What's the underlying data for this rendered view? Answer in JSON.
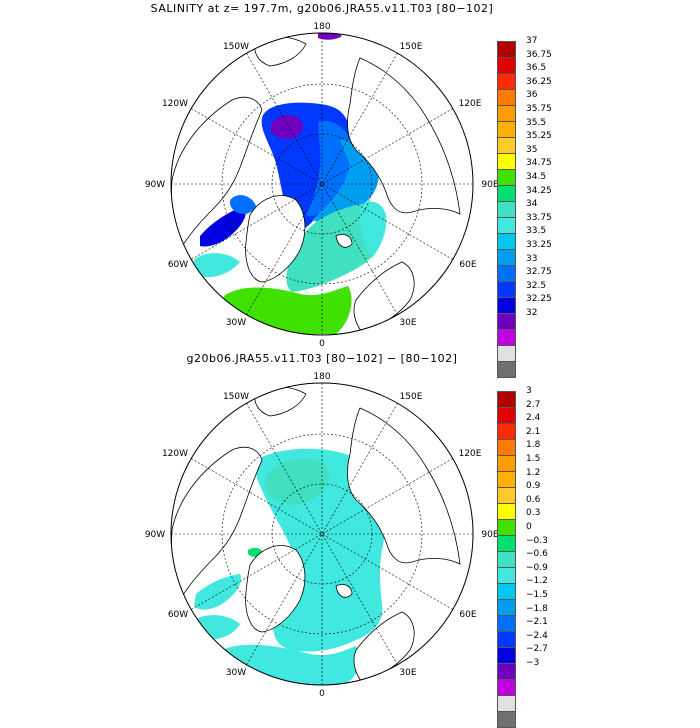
{
  "top": {
    "title": "SALINITY at z= 197.7m, g20b06.JRA55.v11.T03 [80−102]",
    "colorbar_labels": [
      "37",
      "36.75",
      "36.5",
      "36.25",
      "36",
      "35.75",
      "35.5",
      "35.25",
      "35",
      "34.75",
      "34.5",
      "34.25",
      "34",
      "33.75",
      "33.5",
      "33.25",
      "33",
      "32.75",
      "32.5",
      "32.25",
      "32"
    ],
    "colorbar_colors": [
      "#b30000",
      "#e00000",
      "#ff2a00",
      "#ff7a00",
      "#ff9d00",
      "#ffb000",
      "#ffca2a",
      "#ffff00",
      "#40e000",
      "#00e070",
      "#40e0c0",
      "#40e8e0",
      "#00c8f0",
      "#009ef0",
      "#0070ff",
      "#0038ff",
      "#0000e0",
      "#7000c0",
      "#c000e0",
      "#e0e0e0",
      "#707070"
    ]
  },
  "bottom": {
    "title": "g20b06.JRA55.v11.T03 [80−102] −  [80−102]",
    "colorbar_labels": [
      "3",
      "2.7",
      "2.4",
      "2.1",
      "1.8",
      "1.5",
      "1.2",
      "0.9",
      "0.6",
      "0.3",
      "0",
      "−0.3",
      "−0.6",
      "−0.9",
      "−1.2",
      "−1.5",
      "−1.8",
      "−2.1",
      "−2.4",
      "−2.7",
      "−3"
    ],
    "colorbar_colors": [
      "#b30000",
      "#e00000",
      "#ff2a00",
      "#ff7a00",
      "#ff9d00",
      "#ffb000",
      "#ffca2a",
      "#ffff00",
      "#40e000",
      "#00e070",
      "#40e0c0",
      "#40e8e0",
      "#00c8f0",
      "#009ef0",
      "#0070ff",
      "#0038ff",
      "#0000e0",
      "#7000c0",
      "#c000e0",
      "#e0e0e0",
      "#707070"
    ]
  },
  "map_labels": {
    "lon_180": "180",
    "lon_0": "0",
    "lon_150w": "150W",
    "lon_150e": "150E",
    "lon_120w": "120W",
    "lon_120e": "120E",
    "lon_90w": "90W",
    "lon_90e": "90E",
    "lon_60w": "60W",
    "lon_60e": "60E",
    "lon_30w": "30W",
    "lon_30e": "30E"
  },
  "colors": {
    "land_outline": "#000000",
    "grid": "#000000"
  }
}
